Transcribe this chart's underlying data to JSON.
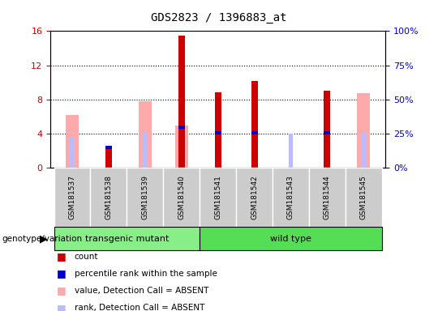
{
  "title": "GDS2823 / 1396883_at",
  "samples": [
    "GSM181537",
    "GSM181538",
    "GSM181539",
    "GSM181540",
    "GSM181541",
    "GSM181542",
    "GSM181543",
    "GSM181544",
    "GSM181545"
  ],
  "count": [
    null,
    2.2,
    null,
    15.5,
    8.8,
    10.2,
    null,
    9.0,
    null
  ],
  "percentile_rank": [
    null,
    2.6,
    null,
    5.0,
    4.3,
    4.3,
    null,
    4.3,
    null
  ],
  "value_absent": [
    6.2,
    null,
    7.8,
    5.0,
    null,
    null,
    null,
    null,
    8.7
  ],
  "rank_absent": [
    3.5,
    null,
    4.1,
    null,
    null,
    null,
    4.0,
    null,
    4.1
  ],
  "value_absent_col": "#ffaaaa",
  "rank_absent_col": "#bbbbff",
  "count_col": "#cc0000",
  "percentile_col": "#0000cc",
  "groups": [
    {
      "label": "transgenic mutant",
      "start": 0,
      "end": 3,
      "color": "#88ee88"
    },
    {
      "label": "wild type",
      "start": 4,
      "end": 8,
      "color": "#55dd55"
    }
  ],
  "ylim_left": [
    0,
    16
  ],
  "ylim_right": [
    0,
    100
  ],
  "yticks_left": [
    0,
    4,
    8,
    12,
    16
  ],
  "yticks_right": [
    0,
    25,
    50,
    75,
    100
  ],
  "left_color": "#cc0000",
  "right_color": "#0000cc",
  "legend_items": [
    {
      "color": "#cc0000",
      "label": "count"
    },
    {
      "color": "#0000cc",
      "label": "percentile rank within the sample"
    },
    {
      "color": "#ffaaaa",
      "label": "value, Detection Call = ABSENT"
    },
    {
      "color": "#bbbbff",
      "label": "rank, Detection Call = ABSENT"
    }
  ]
}
